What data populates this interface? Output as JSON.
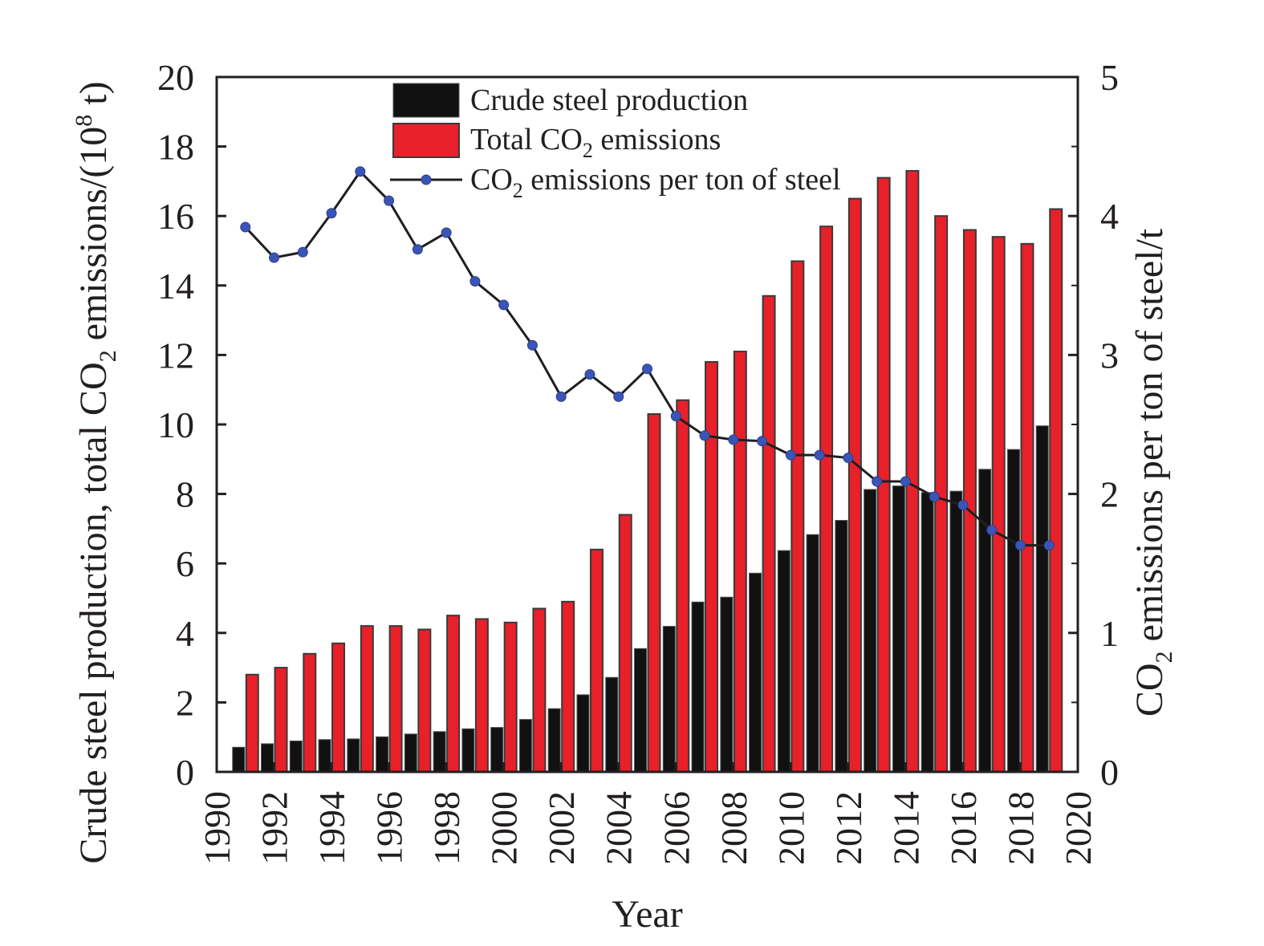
{
  "chart_data": {
    "type": "bar",
    "xlabel": "Year",
    "ylabel_left": "Crude steel production, total CO2 emissions/(10^8 t)",
    "ylabel_right": "CO2 emissions per ton of steel/t",
    "xlim": [
      1990,
      2020
    ],
    "ylim_left": [
      0,
      20
    ],
    "ylim_right": [
      0,
      5
    ],
    "x_ticks": [
      "1990",
      "1992",
      "1994",
      "1996",
      "1998",
      "2000",
      "2002",
      "2004",
      "2006",
      "2008",
      "2010",
      "2012",
      "2014",
      "2016",
      "2018",
      "2020"
    ],
    "y_left_ticks": [
      "0",
      "2",
      "4",
      "6",
      "8",
      "10",
      "12",
      "14",
      "16",
      "18",
      "20"
    ],
    "y_right_ticks": [
      "0",
      "1",
      "2",
      "3",
      "4",
      "5"
    ],
    "legend_position": "top-center",
    "x": [
      1991,
      1992,
      1993,
      1994,
      1995,
      1996,
      1997,
      1998,
      1999,
      2000,
      2001,
      2002,
      2003,
      2004,
      2005,
      2006,
      2007,
      2008,
      2009,
      2010,
      2011,
      2012,
      2013,
      2014,
      2015,
      2016,
      2017,
      2018,
      2019
    ],
    "series": [
      {
        "name": "Crude steel production",
        "kind": "bar",
        "axis": "left",
        "color": "#111111",
        "values": [
          0.71,
          0.81,
          0.89,
          0.93,
          0.95,
          1.01,
          1.09,
          1.16,
          1.24,
          1.28,
          1.51,
          1.82,
          2.22,
          2.72,
          3.55,
          4.19,
          4.89,
          5.03,
          5.72,
          6.37,
          6.83,
          7.24,
          8.13,
          8.23,
          8.04,
          8.08,
          8.71,
          9.28,
          9.96
        ]
      },
      {
        "name": "Total CO2 emissions",
        "kind": "bar",
        "axis": "left",
        "color": "#e8202a",
        "values": [
          2.8,
          3.0,
          3.4,
          3.7,
          4.2,
          4.2,
          4.1,
          4.5,
          4.4,
          4.3,
          4.7,
          4.9,
          6.4,
          7.4,
          10.3,
          10.7,
          11.8,
          12.1,
          13.7,
          14.7,
          15.7,
          16.5,
          17.1,
          17.3,
          16.0,
          15.6,
          15.4,
          15.2,
          16.2
        ]
      },
      {
        "name": "CO2 emissions per ton of steel",
        "kind": "line",
        "axis": "right",
        "color": "#1f1f1f",
        "marker_color": "#3a55b5",
        "values": [
          3.92,
          3.7,
          3.74,
          4.02,
          4.32,
          4.11,
          3.76,
          3.88,
          3.53,
          3.36,
          3.07,
          2.7,
          2.86,
          2.7,
          2.9,
          2.56,
          2.42,
          2.39,
          2.38,
          2.28,
          2.28,
          2.26,
          2.09,
          2.09,
          1.98,
          1.92,
          1.74,
          1.63,
          1.63
        ]
      }
    ]
  }
}
